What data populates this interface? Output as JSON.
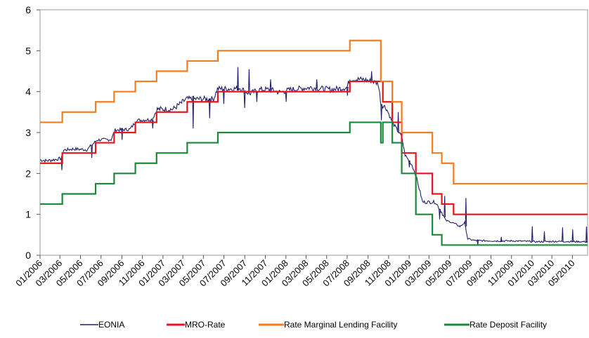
{
  "chart_data": {
    "type": "line",
    "title": "",
    "xlabel": "",
    "ylabel": "",
    "ylim": [
      0,
      6
    ],
    "y_ticks": [
      "0",
      "1",
      "2",
      "3",
      "4",
      "5",
      "6"
    ],
    "x_range": [
      "2006-01-01",
      "2010-06-15"
    ],
    "x_ticks": [
      {
        "label": "01/2006",
        "date": "2006-01-01"
      },
      {
        "label": "03/2006",
        "date": "2006-03-01"
      },
      {
        "label": "05/2006",
        "date": "2006-05-01"
      },
      {
        "label": "07/2006",
        "date": "2006-07-01"
      },
      {
        "label": "09/2006",
        "date": "2006-09-01"
      },
      {
        "label": "11/2006",
        "date": "2006-11-01"
      },
      {
        "label": "01/2007",
        "date": "2007-01-01"
      },
      {
        "label": "03/2007",
        "date": "2007-03-01"
      },
      {
        "label": "05/2007",
        "date": "2007-05-01"
      },
      {
        "label": "07/2007",
        "date": "2007-07-01"
      },
      {
        "label": "09/2007",
        "date": "2007-09-01"
      },
      {
        "label": "11/2007",
        "date": "2007-11-01"
      },
      {
        "label": "01/2008",
        "date": "2008-01-01"
      },
      {
        "label": "03/2008",
        "date": "2008-03-01"
      },
      {
        "label": "05/2008",
        "date": "2008-05-01"
      },
      {
        "label": "07/2008",
        "date": "2008-07-01"
      },
      {
        "label": "09/2008",
        "date": "2008-09-01"
      },
      {
        "label": "11/2008",
        "date": "2008-11-01"
      },
      {
        "label": "01/2009",
        "date": "2009-01-01"
      },
      {
        "label": "03/2009",
        "date": "2009-03-01"
      },
      {
        "label": "05/2009",
        "date": "2009-05-01"
      },
      {
        "label": "07/2009",
        "date": "2009-07-01"
      },
      {
        "label": "09/2009",
        "date": "2009-09-01"
      },
      {
        "label": "11/2009",
        "date": "2009-11-01"
      },
      {
        "label": "01/2010",
        "date": "2010-01-01"
      },
      {
        "label": "03/2010",
        "date": "2010-03-01"
      },
      {
        "label": "05/2010",
        "date": "2010-05-01"
      }
    ],
    "series": [
      {
        "name": "EONIA",
        "color": "#1f1f6e",
        "style": "noisy",
        "values": [
          [
            "2006-01-01",
            2.33
          ],
          [
            "2006-01-20",
            2.31
          ],
          [
            "2006-02-15",
            2.34
          ],
          [
            "2006-03-05",
            2.37
          ],
          [
            "2006-03-12",
            2.57
          ],
          [
            "2006-04-10",
            2.6
          ],
          [
            "2006-05-20",
            2.58
          ],
          [
            "2006-06-20",
            2.82
          ],
          [
            "2006-07-31",
            2.83
          ],
          [
            "2006-08-12",
            3.06
          ],
          [
            "2006-09-25",
            3.08
          ],
          [
            "2006-10-15",
            3.3
          ],
          [
            "2006-11-30",
            3.32
          ],
          [
            "2006-12-15",
            3.57
          ],
          [
            "2007-01-31",
            3.57
          ],
          [
            "2007-03-12",
            3.82
          ],
          [
            "2007-05-31",
            3.82
          ],
          [
            "2007-06-12",
            4.07
          ],
          [
            "2007-08-01",
            4.07
          ],
          [
            "2007-08-15",
            4.1
          ],
          [
            "2007-09-15",
            3.95
          ],
          [
            "2007-10-15",
            4.05
          ],
          [
            "2007-11-15",
            4.05
          ],
          [
            "2007-12-15",
            3.98
          ],
          [
            "2008-01-15",
            4.05
          ],
          [
            "2008-03-15",
            4.1
          ],
          [
            "2008-05-15",
            4.05
          ],
          [
            "2008-06-30",
            4.1
          ],
          [
            "2008-07-09",
            4.3
          ],
          [
            "2008-08-15",
            4.3
          ],
          [
            "2008-09-15",
            4.25
          ],
          [
            "2008-10-01",
            4.2
          ],
          [
            "2008-10-10",
            3.7
          ],
          [
            "2008-10-25",
            3.6
          ],
          [
            "2008-11-12",
            3.25
          ],
          [
            "2008-12-10",
            2.9
          ],
          [
            "2008-12-20",
            2.45
          ],
          [
            "2009-01-10",
            2.2
          ],
          [
            "2009-01-21",
            1.95
          ],
          [
            "2009-02-10",
            1.3
          ],
          [
            "2009-03-20",
            1.3
          ],
          [
            "2009-04-08",
            1.05
          ],
          [
            "2009-04-20",
            0.85
          ],
          [
            "2009-05-10",
            0.8
          ],
          [
            "2009-06-01",
            0.7
          ],
          [
            "2009-06-15",
            0.8
          ],
          [
            "2009-06-24",
            0.4
          ],
          [
            "2009-07-15",
            0.36
          ],
          [
            "2009-09-15",
            0.35
          ],
          [
            "2009-11-15",
            0.35
          ],
          [
            "2010-01-15",
            0.33
          ],
          [
            "2010-03-15",
            0.34
          ],
          [
            "2010-06-15",
            0.33
          ]
        ],
        "spikes": [
          [
            "2006-03-05",
            2.08
          ],
          [
            "2006-06-02",
            2.38
          ],
          [
            "2006-08-31",
            2.82
          ],
          [
            "2006-11-30",
            3.1
          ],
          [
            "2007-03-30",
            3.1
          ],
          [
            "2007-05-18",
            3.35
          ],
          [
            "2007-06-29",
            3.7
          ],
          [
            "2007-08-10",
            4.6
          ],
          [
            "2007-08-30",
            3.6
          ],
          [
            "2007-09-12",
            4.55
          ],
          [
            "2007-10-05",
            3.75
          ],
          [
            "2007-11-15",
            4.3
          ],
          [
            "2007-12-31",
            3.75
          ],
          [
            "2008-03-31",
            4.3
          ],
          [
            "2008-06-30",
            3.9
          ],
          [
            "2008-09-10",
            4.5
          ],
          [
            "2008-10-09",
            3.3
          ],
          [
            "2008-11-28",
            3.5
          ],
          [
            "2008-12-31",
            2.15
          ],
          [
            "2009-03-31",
            0.88
          ],
          [
            "2009-04-15",
            1.45
          ],
          [
            "2009-06-17",
            1.4
          ],
          [
            "2009-07-22",
            0.25
          ],
          [
            "2009-09-30",
            0.45
          ],
          [
            "2009-12-31",
            0.71
          ],
          [
            "2010-02-05",
            0.58
          ],
          [
            "2010-03-31",
            0.68
          ],
          [
            "2010-04-30",
            0.63
          ],
          [
            "2010-06-10",
            0.7
          ]
        ]
      },
      {
        "name": "MRO-Rate",
        "color": "#e8141b",
        "style": "step",
        "values": [
          [
            "2006-01-01",
            2.25
          ],
          [
            "2006-03-08",
            2.5
          ],
          [
            "2006-06-15",
            2.75
          ],
          [
            "2006-08-09",
            3.0
          ],
          [
            "2006-10-11",
            3.25
          ],
          [
            "2006-12-13",
            3.5
          ],
          [
            "2007-03-14",
            3.75
          ],
          [
            "2007-06-13",
            4.0
          ],
          [
            "2008-07-09",
            4.25
          ],
          [
            "2008-10-15",
            3.75
          ],
          [
            "2008-11-12",
            3.25
          ],
          [
            "2008-12-10",
            2.5
          ],
          [
            "2009-01-21",
            2.0
          ],
          [
            "2009-03-11",
            1.5
          ],
          [
            "2009-04-08",
            1.25
          ],
          [
            "2009-05-13",
            1.0
          ],
          [
            "2010-06-15",
            1.0
          ]
        ]
      },
      {
        "name": "Rate Marginal Lending Facility",
        "color": "#f57c1f",
        "style": "step",
        "values": [
          [
            "2006-01-01",
            3.25
          ],
          [
            "2006-03-08",
            3.5
          ],
          [
            "2006-06-15",
            3.75
          ],
          [
            "2006-08-09",
            4.0
          ],
          [
            "2006-10-11",
            4.25
          ],
          [
            "2006-12-13",
            4.5
          ],
          [
            "2007-03-14",
            4.75
          ],
          [
            "2007-06-13",
            5.0
          ],
          [
            "2008-07-09",
            5.25
          ],
          [
            "2008-10-09",
            4.25
          ],
          [
            "2008-11-12",
            3.75
          ],
          [
            "2008-12-10",
            3.0
          ],
          [
            "2009-03-11",
            2.5
          ],
          [
            "2009-04-08",
            2.25
          ],
          [
            "2009-05-13",
            1.75
          ],
          [
            "2010-06-15",
            1.75
          ]
        ]
      },
      {
        "name": "Rate Deposit Facility",
        "color": "#1a8a3a",
        "style": "step",
        "values": [
          [
            "2006-01-01",
            1.25
          ],
          [
            "2006-03-08",
            1.5
          ],
          [
            "2006-06-15",
            1.75
          ],
          [
            "2006-08-09",
            2.0
          ],
          [
            "2006-10-11",
            2.25
          ],
          [
            "2006-12-13",
            2.5
          ],
          [
            "2007-03-14",
            2.75
          ],
          [
            "2007-06-13",
            3.0
          ],
          [
            "2008-07-09",
            3.25
          ],
          [
            "2008-10-09",
            2.75
          ],
          [
            "2008-10-15",
            3.25
          ],
          [
            "2008-11-12",
            2.75
          ],
          [
            "2008-12-10",
            2.0
          ],
          [
            "2009-01-21",
            1.0
          ],
          [
            "2009-03-11",
            0.5
          ],
          [
            "2009-04-08",
            0.25
          ],
          [
            "2010-06-15",
            0.25
          ]
        ]
      }
    ],
    "legend": {
      "position": "bottom"
    }
  }
}
